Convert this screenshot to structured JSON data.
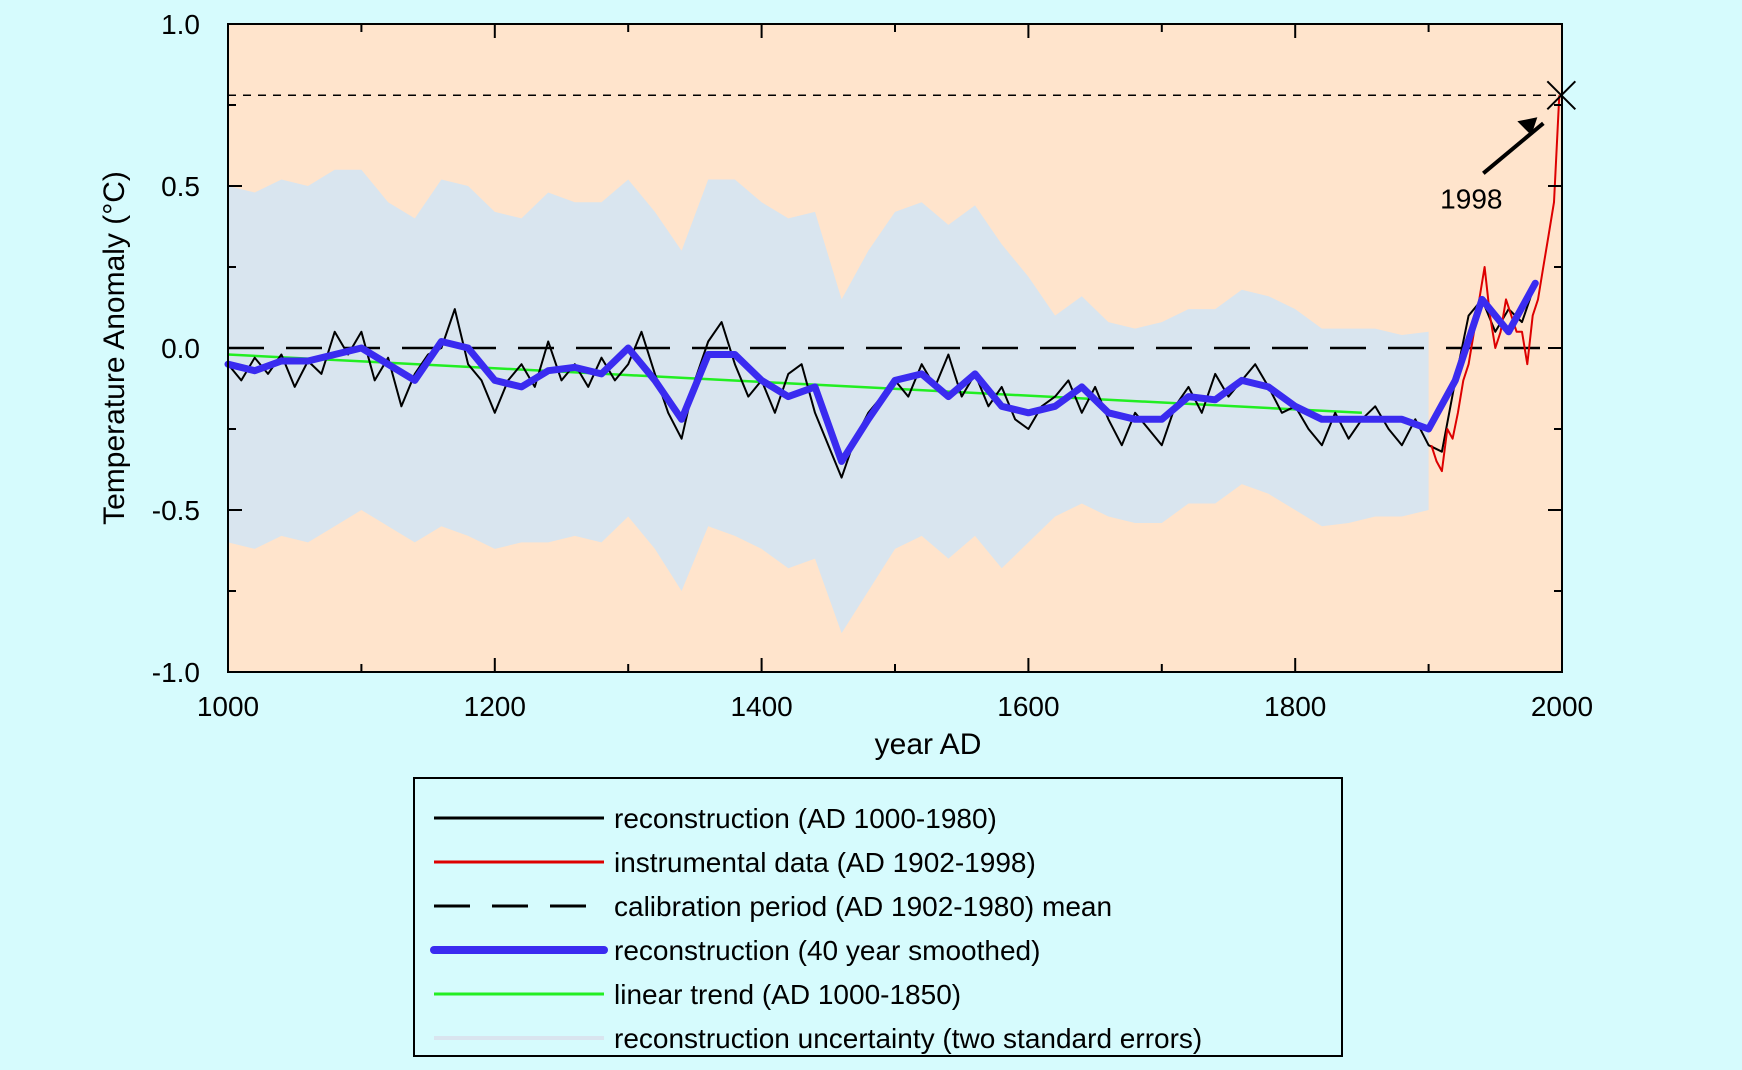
{
  "chart_data": {
    "type": "line",
    "title": "",
    "xlabel": "year AD",
    "ylabel": "Temperature Anomaly (°C)",
    "xlim": [
      1000,
      2000
    ],
    "ylim": [
      -1.0,
      1.0
    ],
    "x_ticks": [
      1000,
      1200,
      1400,
      1600,
      1800,
      2000
    ],
    "x_tick_labels": [
      "1000",
      "1200",
      "1400",
      "1600",
      "1800",
      "2000"
    ],
    "y_ticks": [
      -1.0,
      -0.5,
      0.0,
      0.5,
      1.0
    ],
    "y_tick_labels": [
      "-1.0",
      "-0.5",
      "0.0",
      "0.5",
      "1.0"
    ],
    "grid": false,
    "legend_position": "bottom-center",
    "colors": {
      "plot_background": "#ffe4cc",
      "page_background": "#d6fbfd",
      "reconstruction": "#000000",
      "instrumental": "#dd0000",
      "smoothed": "#3a2bf0",
      "trend": "#22ee22",
      "uncertainty": "#d9e5ef"
    },
    "annotations": [
      {
        "text": "1998",
        "x": 1998,
        "y": 0.78,
        "marker": "x",
        "arrow": true,
        "horizontal_dashed_line_at": 0.78
      }
    ],
    "series": [
      {
        "name": "reconstruction (AD 1000-1980)",
        "style": "solid-thin",
        "x": [
          1000,
          1010,
          1020,
          1030,
          1040,
          1050,
          1060,
          1070,
          1080,
          1090,
          1100,
          1110,
          1120,
          1130,
          1140,
          1150,
          1160,
          1170,
          1180,
          1190,
          1200,
          1210,
          1220,
          1230,
          1240,
          1250,
          1260,
          1270,
          1280,
          1290,
          1300,
          1310,
          1320,
          1330,
          1340,
          1350,
          1360,
          1370,
          1380,
          1390,
          1400,
          1410,
          1420,
          1430,
          1440,
          1450,
          1460,
          1470,
          1480,
          1490,
          1500,
          1510,
          1520,
          1530,
          1540,
          1550,
          1560,
          1570,
          1580,
          1590,
          1600,
          1610,
          1620,
          1630,
          1640,
          1650,
          1660,
          1670,
          1680,
          1690,
          1700,
          1710,
          1720,
          1730,
          1740,
          1750,
          1760,
          1770,
          1780,
          1790,
          1800,
          1810,
          1820,
          1830,
          1840,
          1850,
          1860,
          1870,
          1880,
          1890,
          1900,
          1910,
          1920,
          1930,
          1940,
          1950,
          1960,
          1970,
          1980
        ],
        "y": [
          -0.05,
          -0.1,
          -0.03,
          -0.08,
          -0.02,
          -0.12,
          -0.04,
          -0.08,
          0.05,
          -0.02,
          0.05,
          -0.1,
          -0.03,
          -0.18,
          -0.08,
          -0.02,
          0.0,
          0.12,
          -0.05,
          -0.1,
          -0.2,
          -0.1,
          -0.05,
          -0.12,
          0.02,
          -0.1,
          -0.05,
          -0.12,
          -0.03,
          -0.1,
          -0.05,
          0.05,
          -0.08,
          -0.2,
          -0.28,
          -0.1,
          0.02,
          0.08,
          -0.05,
          -0.15,
          -0.1,
          -0.2,
          -0.08,
          -0.05,
          -0.2,
          -0.3,
          -0.4,
          -0.28,
          -0.2,
          -0.15,
          -0.1,
          -0.15,
          -0.05,
          -0.12,
          -0.02,
          -0.15,
          -0.08,
          -0.18,
          -0.12,
          -0.22,
          -0.25,
          -0.18,
          -0.15,
          -0.1,
          -0.2,
          -0.12,
          -0.22,
          -0.3,
          -0.2,
          -0.25,
          -0.3,
          -0.18,
          -0.12,
          -0.2,
          -0.08,
          -0.15,
          -0.1,
          -0.05,
          -0.12,
          -0.2,
          -0.18,
          -0.25,
          -0.3,
          -0.2,
          -0.28,
          -0.22,
          -0.18,
          -0.25,
          -0.3,
          -0.22,
          -0.3,
          -0.32,
          -0.1,
          0.1,
          0.15,
          0.05,
          0.12,
          0.08,
          0.2
        ]
      },
      {
        "name": "instrumental data (AD 1902-1998)",
        "style": "solid-thin",
        "x": [
          1902,
          1906,
          1910,
          1914,
          1918,
          1922,
          1926,
          1930,
          1934,
          1938,
          1942,
          1946,
          1950,
          1954,
          1958,
          1962,
          1966,
          1970,
          1974,
          1978,
          1982,
          1986,
          1990,
          1994,
          1998
        ],
        "y": [
          -0.3,
          -0.35,
          -0.38,
          -0.25,
          -0.28,
          -0.2,
          -0.1,
          -0.05,
          0.05,
          0.15,
          0.25,
          0.1,
          0.0,
          0.05,
          0.15,
          0.1,
          0.05,
          0.05,
          -0.05,
          0.1,
          0.15,
          0.25,
          0.35,
          0.45,
          0.78
        ]
      },
      {
        "name": "calibration period (AD 1902-1980) mean",
        "style": "dashed",
        "x": [
          1000,
          2000
        ],
        "y": [
          0.0,
          0.0
        ]
      },
      {
        "name": "reconstruction (40 year smoothed)",
        "style": "solid-thick",
        "x": [
          1000,
          1020,
          1040,
          1060,
          1080,
          1100,
          1120,
          1140,
          1160,
          1180,
          1200,
          1220,
          1240,
          1260,
          1280,
          1300,
          1320,
          1340,
          1360,
          1380,
          1400,
          1420,
          1440,
          1460,
          1480,
          1500,
          1520,
          1540,
          1560,
          1580,
          1600,
          1620,
          1640,
          1660,
          1680,
          1700,
          1720,
          1740,
          1760,
          1780,
          1800,
          1820,
          1840,
          1860,
          1880,
          1900,
          1920,
          1940,
          1960,
          1980
        ],
        "y": [
          -0.05,
          -0.07,
          -0.04,
          -0.04,
          -0.02,
          0.0,
          -0.05,
          -0.1,
          0.02,
          0.0,
          -0.1,
          -0.12,
          -0.07,
          -0.06,
          -0.08,
          0.0,
          -0.1,
          -0.22,
          -0.02,
          -0.02,
          -0.1,
          -0.15,
          -0.12,
          -0.35,
          -0.22,
          -0.1,
          -0.08,
          -0.15,
          -0.08,
          -0.18,
          -0.2,
          -0.18,
          -0.12,
          -0.2,
          -0.22,
          -0.22,
          -0.15,
          -0.16,
          -0.1,
          -0.12,
          -0.18,
          -0.22,
          -0.22,
          -0.22,
          -0.22,
          -0.25,
          -0.1,
          0.15,
          0.05,
          0.2
        ]
      },
      {
        "name": "linear trend (AD 1000-1850)",
        "style": "solid-thin",
        "x": [
          1000,
          1850
        ],
        "y": [
          -0.02,
          -0.2
        ]
      },
      {
        "name": "reconstruction uncertainty (two standard errors)",
        "style": "band",
        "x": [
          1000,
          1020,
          1040,
          1060,
          1080,
          1100,
          1120,
          1140,
          1160,
          1180,
          1200,
          1220,
          1240,
          1260,
          1280,
          1300,
          1320,
          1340,
          1360,
          1380,
          1400,
          1420,
          1440,
          1460,
          1480,
          1500,
          1520,
          1540,
          1560,
          1580,
          1600,
          1620,
          1640,
          1660,
          1680,
          1700,
          1720,
          1740,
          1760,
          1780,
          1800,
          1820,
          1840,
          1860,
          1880,
          1900
        ],
        "lower": [
          -0.6,
          -0.62,
          -0.58,
          -0.6,
          -0.55,
          -0.5,
          -0.55,
          -0.6,
          -0.55,
          -0.58,
          -0.62,
          -0.6,
          -0.6,
          -0.58,
          -0.6,
          -0.52,
          -0.62,
          -0.75,
          -0.55,
          -0.58,
          -0.62,
          -0.68,
          -0.65,
          -0.88,
          -0.75,
          -0.62,
          -0.58,
          -0.65,
          -0.58,
          -0.68,
          -0.6,
          -0.52,
          -0.48,
          -0.52,
          -0.54,
          -0.54,
          -0.48,
          -0.48,
          -0.42,
          -0.45,
          -0.5,
          -0.55,
          -0.54,
          -0.52,
          -0.52,
          -0.5
        ],
        "upper": [
          0.5,
          0.48,
          0.52,
          0.5,
          0.55,
          0.55,
          0.45,
          0.4,
          0.52,
          0.5,
          0.42,
          0.4,
          0.48,
          0.45,
          0.45,
          0.52,
          0.42,
          0.3,
          0.52,
          0.52,
          0.45,
          0.4,
          0.42,
          0.15,
          0.3,
          0.42,
          0.45,
          0.38,
          0.44,
          0.32,
          0.22,
          0.1,
          0.16,
          0.08,
          0.06,
          0.08,
          0.12,
          0.12,
          0.18,
          0.16,
          0.12,
          0.06,
          0.06,
          0.06,
          0.04,
          0.05
        ]
      }
    ]
  }
}
